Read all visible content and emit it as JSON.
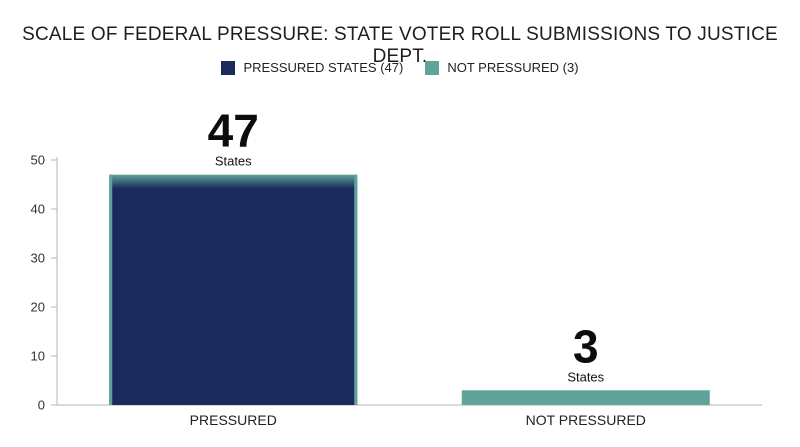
{
  "chart_data": {
    "type": "bar",
    "title": "SCALE OF FEDERAL PRESSURE: STATE VOTER ROLL SUBMISSIONS TO JUSTICE DEPT.",
    "categories": [
      "PRESSURED",
      "NOT PRESSURED"
    ],
    "values": [
      47,
      3
    ],
    "series": [
      {
        "name": "PRESSURED STATES (47)",
        "color": "#1b2a5c",
        "values": [
          47,
          0
        ]
      },
      {
        "name": "NOT PRESSURED (3)",
        "color": "#5fa39a",
        "values": [
          0,
          3
        ]
      }
    ],
    "data_labels": [
      {
        "value": "47",
        "unit": "States"
      },
      {
        "value": "3",
        "unit": "States"
      }
    ],
    "bar_colors": [
      "#1b2a5c",
      "#5fa39a"
    ],
    "accent_edge_color": "#5fa39a",
    "ylim": [
      0,
      50
    ],
    "yticks": [
      0,
      10,
      20,
      30,
      40,
      50
    ],
    "xlabel": "",
    "ylabel": "",
    "grid": false,
    "legend_position": "top-center"
  }
}
